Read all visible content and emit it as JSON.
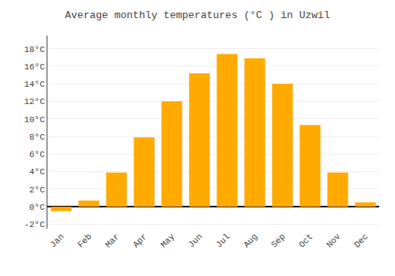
{
  "chart_data": {
    "type": "bar",
    "title": "Average monthly temperatures (°C ) in Uzwil",
    "categories": [
      "Jan",
      "Feb",
      "Mar",
      "Apr",
      "May",
      "Jun",
      "Jul",
      "Aug",
      "Sep",
      "Oct",
      "Nov",
      "Dec"
    ],
    "values": [
      -0.5,
      0.7,
      3.9,
      7.9,
      12.0,
      15.2,
      17.4,
      16.9,
      14.0,
      9.3,
      3.9,
      0.5
    ],
    "color": "#FFAA00",
    "ylim": [
      -2.5,
      19.5
    ],
    "yticks": [
      {
        "value": -2,
        "label": "-2°C"
      },
      {
        "value": 0,
        "label": "0°C"
      },
      {
        "value": 2,
        "label": "2°C"
      },
      {
        "value": 4,
        "label": "4°C"
      },
      {
        "value": 6,
        "label": "6°C"
      },
      {
        "value": 8,
        "label": "8°C"
      },
      {
        "value": 10,
        "label": "10°C"
      },
      {
        "value": 12,
        "label": "12°C"
      },
      {
        "value": 14,
        "label": "14°C"
      },
      {
        "value": 16,
        "label": "16°C"
      },
      {
        "value": 18,
        "label": "18°C"
      }
    ],
    "grid": true
  }
}
